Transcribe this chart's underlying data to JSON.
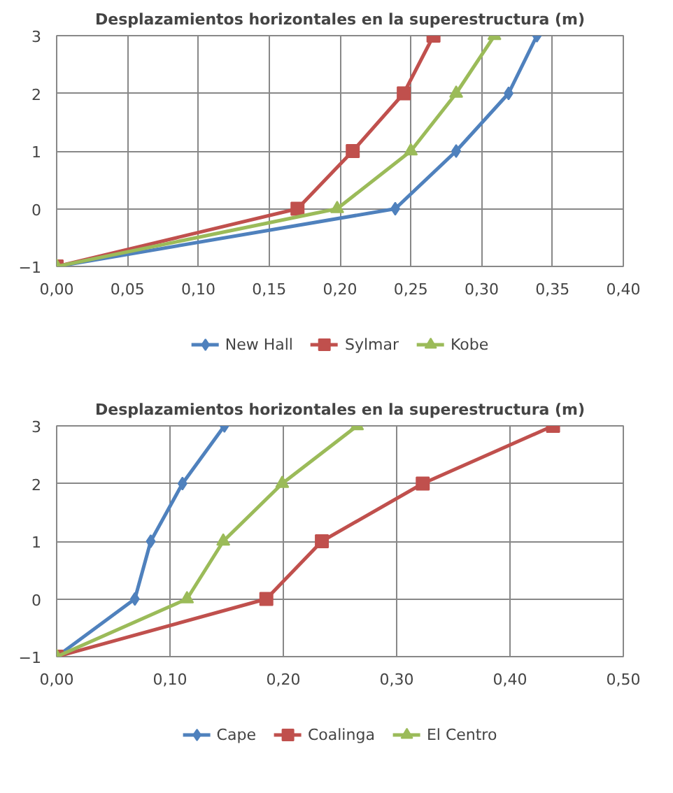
{
  "chart_data": [
    {
      "type": "line",
      "title": "Desplazamientos horizontales en la superestructura (m)",
      "legend": "bottom",
      "grid": true,
      "line_style": "solid",
      "xlim": [
        0,
        0.4
      ],
      "xticks": [
        {
          "value": 0,
          "label": "0,00"
        },
        {
          "value": 0.05,
          "label": "0,05"
        },
        {
          "value": 0.1,
          "label": "0,10"
        },
        {
          "value": 0.15,
          "label": "0,15"
        },
        {
          "value": 0.2,
          "label": "0,20"
        },
        {
          "value": 0.25,
          "label": "0,25"
        },
        {
          "value": 0.3,
          "label": "0,30"
        },
        {
          "value": 0.35,
          "label": "0,35"
        },
        {
          "value": 0.4,
          "label": "0,40"
        }
      ],
      "ylim": [
        -1,
        3
      ],
      "yticks": [
        -1,
        0,
        1,
        2,
        3
      ],
      "series": [
        {
          "name": "New Hall",
          "color": "#4f81bd",
          "marker": "diamond",
          "x": [
            0,
            0.239,
            0.282,
            0.319,
            0.339
          ],
          "values": [
            -1,
            0,
            1,
            2,
            3
          ]
        },
        {
          "name": "Sylmar",
          "color": "#c0504d",
          "marker": "square",
          "x": [
            0,
            0.17,
            0.209,
            0.245,
            0.266
          ],
          "values": [
            -1,
            0,
            1,
            2,
            3
          ]
        },
        {
          "name": "Kobe",
          "color": "#9bbb59",
          "marker": "triangle",
          "x": [
            0,
            0.198,
            0.25,
            0.282,
            0.309
          ],
          "values": [
            -1,
            0,
            1,
            2,
            3
          ]
        }
      ]
    },
    {
      "type": "line",
      "title": "Desplazamientos horizontales en la superestructura (m)",
      "legend": "bottom",
      "grid": true,
      "line_style": "solid",
      "xlim": [
        0,
        0.5
      ],
      "xticks": [
        {
          "value": 0,
          "label": "0,00"
        },
        {
          "value": 0.1,
          "label": "0,10"
        },
        {
          "value": 0.2,
          "label": "0,20"
        },
        {
          "value": 0.3,
          "label": "0,30"
        },
        {
          "value": 0.4,
          "label": "0,40"
        },
        {
          "value": 0.5,
          "label": "0,50"
        }
      ],
      "ylim": [
        -1,
        3
      ],
      "yticks": [
        -1,
        0,
        1,
        2,
        3
      ],
      "series": [
        {
          "name": "Cape",
          "color": "#4f81bd",
          "marker": "diamond",
          "x": [
            0,
            0.069,
            0.083,
            0.111,
            0.148
          ],
          "values": [
            -1,
            0,
            1,
            2,
            3
          ]
        },
        {
          "name": "Coalinga",
          "color": "#c0504d",
          "marker": "square",
          "x": [
            0,
            0.185,
            0.234,
            0.323,
            0.438
          ],
          "values": [
            -1,
            0,
            1,
            2,
            3
          ]
        },
        {
          "name": "El Centro",
          "color": "#9bbb59",
          "marker": "triangle",
          "x": [
            0,
            0.115,
            0.147,
            0.199,
            0.265
          ],
          "values": [
            -1,
            0,
            1,
            2,
            3
          ]
        }
      ]
    }
  ]
}
